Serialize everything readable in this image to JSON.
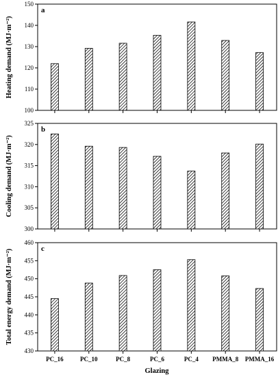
{
  "xlabel": "Glazing",
  "chart_data": [
    {
      "type": "bar",
      "panel": "a",
      "ylabel": "Heating demand (MJ·m⁻²)",
      "ylim": [
        100,
        150
      ],
      "yticks": [
        100,
        110,
        120,
        130,
        140,
        150
      ],
      "categories": [
        "PC_16",
        "PC_10",
        "PC_8",
        "PC_6",
        "PC_4",
        "PMMA_8",
        "PMMA_16"
      ],
      "values": [
        122.0,
        129.2,
        131.6,
        135.3,
        141.6,
        132.9,
        127.2
      ]
    },
    {
      "type": "bar",
      "panel": "b",
      "ylabel": "Cooling demand (MJ·m⁻²)",
      "ylim": [
        300,
        325
      ],
      "yticks": [
        300,
        305,
        310,
        315,
        320,
        325
      ],
      "categories": [
        "PC_16",
        "PC_10",
        "PC_8",
        "PC_6",
        "PC_4",
        "PMMA_8",
        "PMMA_16"
      ],
      "values": [
        322.5,
        319.6,
        319.3,
        317.2,
        313.7,
        318.0,
        320.1
      ]
    },
    {
      "type": "bar",
      "panel": "c",
      "ylabel": "Total energy demand (MJ·m⁻²)",
      "ylim": [
        430,
        460
      ],
      "yticks": [
        430,
        435,
        440,
        445,
        450,
        455,
        460
      ],
      "categories": [
        "PC_16",
        "PC_10",
        "PC_8",
        "PC_6",
        "PC_4",
        "PMMA_8",
        "PMMA_16"
      ],
      "values": [
        444.5,
        448.8,
        450.9,
        452.5,
        455.3,
        450.8,
        447.3
      ]
    }
  ]
}
